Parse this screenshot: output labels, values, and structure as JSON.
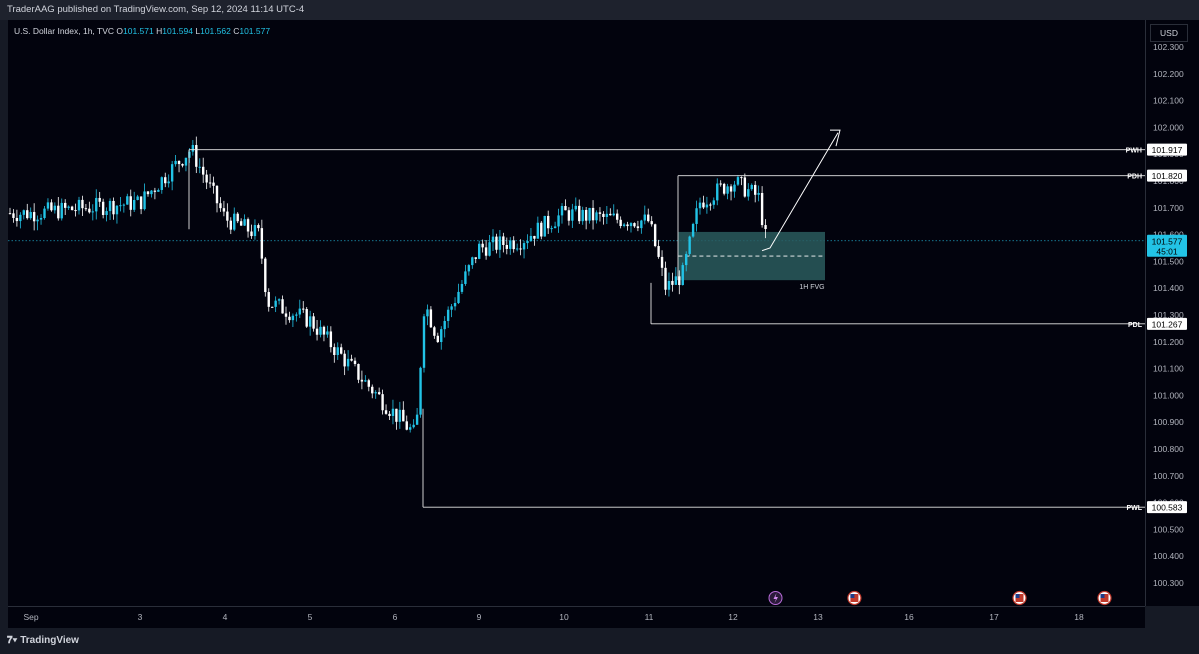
{
  "header": {
    "published": "TraderAAG published on TradingView.com, Sep 12, 2024 11:14 UTC-4"
  },
  "legend": {
    "symbol": "U.S. Dollar Index, 1h, TVC",
    "o_label": "O",
    "o": "101.571",
    "h_label": "H",
    "h": "101.594",
    "l_label": "L",
    "l": "101.562",
    "c_label": "C",
    "c": "101.577"
  },
  "currency_button": "USD",
  "footer": {
    "brand": "TradingView"
  },
  "colors": {
    "background": "#02030d",
    "candle": "#ffffff",
    "accent": "#22c3e6",
    "fvg": "#2a5c5e",
    "level_line": "#e6e6e6"
  },
  "chart_data": {
    "type": "candlestick",
    "title": "U.S. Dollar Index, 1h, TVC",
    "y_axis_ticks": [
      "102.300",
      "102.200",
      "102.100",
      "102.000",
      "101.900",
      "101.800",
      "101.700",
      "101.600",
      "101.500",
      "101.400",
      "101.300",
      "101.200",
      "101.100",
      "101.000",
      "100.900",
      "100.800",
      "100.700",
      "100.600",
      "100.500",
      "100.400",
      "100.300"
    ],
    "ylim": [
      100.24,
      102.4
    ],
    "x_axis_ticks": [
      "Sep",
      "3",
      "4",
      "5",
      "6",
      "9",
      "10",
      "11",
      "12",
      "13",
      "16",
      "17",
      "18"
    ],
    "current_price": {
      "value": 101.577,
      "label": "101.577",
      "countdown": "45:01"
    },
    "levels": [
      {
        "name": "PWH",
        "value": 101.917,
        "label": "101.917"
      },
      {
        "name": "PDH",
        "value": 101.82,
        "label": "101.820"
      },
      {
        "name": "PDL",
        "value": 101.267,
        "label": "101.267"
      },
      {
        "name": "PWL",
        "value": 100.583,
        "label": "100.583"
      }
    ],
    "fvg": {
      "label": "1H FVG",
      "top": 101.61,
      "bottom": 101.43,
      "mid": 101.52
    },
    "price_path": [
      [
        "Sep",
        101.68
      ],
      [
        "3",
        101.72
      ],
      [
        "3.6",
        101.92
      ],
      [
        "4",
        101.66
      ],
      [
        "4.4",
        101.6
      ],
      [
        "4.5",
        101.35
      ],
      [
        "5",
        101.28
      ],
      [
        "5.5",
        101.1
      ],
      [
        "6",
        100.93
      ],
      [
        "6.25",
        100.85
      ],
      [
        "6.35",
        101.35
      ],
      [
        "6.5",
        101.22
      ],
      [
        "9",
        101.55
      ],
      [
        "9.5",
        101.58
      ],
      [
        "10",
        101.68
      ],
      [
        "10.5",
        101.66
      ],
      [
        "11",
        101.65
      ],
      [
        "11.2",
        101.4
      ],
      [
        "11.4",
        101.45
      ],
      [
        "11.6",
        101.72
      ],
      [
        "12",
        101.8
      ],
      [
        "12.3",
        101.74
      ],
      [
        "12.4",
        101.56
      ],
      [
        "12.5",
        101.577
      ]
    ],
    "event_markers": [
      {
        "x": "12.5",
        "icon": "lightning-icon"
      },
      {
        "x": "13.4",
        "icon": "us-flag-icon"
      },
      {
        "x": "17.3",
        "icon": "us-flag-icon"
      },
      {
        "x": "18.3",
        "icon": "us-flag-icon"
      }
    ]
  }
}
